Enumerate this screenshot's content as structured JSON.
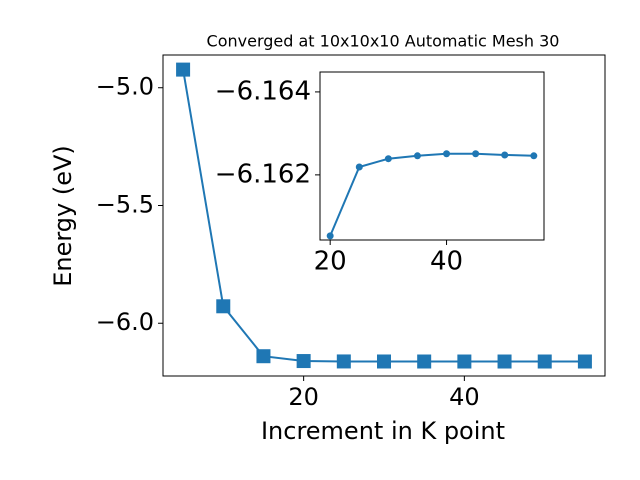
{
  "chart_data": [
    {
      "type": "line",
      "title": "Converged at 10x10x10 Automatic Mesh 30",
      "x_label": "Increment in K point",
      "y_label": "Energy (eV)",
      "x": [
        5,
        10,
        15,
        20,
        25,
        30,
        35,
        40,
        45,
        50,
        55
      ],
      "series": [
        {
          "color": "#1f77b4",
          "marker": "square",
          "values": [
            -4.923,
            -5.928,
            -6.14,
            -6.16053,
            -6.16219,
            -6.16239,
            -6.16246,
            -6.16251,
            -6.16251,
            -6.16248,
            -6.16246
          ]
        }
      ],
      "xlim": [
        2.5,
        57.5
      ],
      "xticks": [
        20,
        40
      ],
      "ylim": [
        -6.224,
        -4.861
      ],
      "yticks": [
        {
          "value": -6.0,
          "label": "−6.0"
        },
        {
          "value": -5.5,
          "label": "−5.5"
        },
        {
          "value": -5.0,
          "label": "−5.0"
        }
      ]
    },
    {
      "type": "line",
      "x": [
        20,
        25,
        30,
        35,
        40,
        45,
        50,
        55
      ],
      "series": [
        {
          "color": "#1f77b4",
          "marker": "circle",
          "values": [
            -6.16053,
            -6.16219,
            -6.16239,
            -6.16246,
            -6.16251,
            -6.16251,
            -6.16248,
            -6.16246
          ]
        }
      ],
      "xlim": [
        18.25,
        56.75
      ],
      "xticks": [
        20,
        40
      ],
      "ylim": [
        -6.16043,
        -6.16448
      ],
      "yticks": [
        {
          "value": -6.162,
          "label": "−6.162"
        },
        {
          "value": -6.164,
          "label": "−6.164"
        }
      ]
    }
  ]
}
